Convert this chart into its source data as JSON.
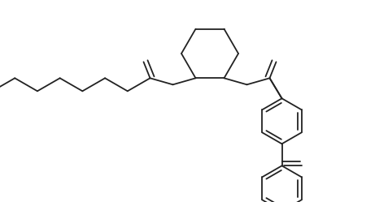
{
  "background_color": "#ffffff",
  "line_color": "#222222",
  "line_width": 1.3,
  "figsize": [
    4.61,
    2.49
  ],
  "dpi": 100,
  "xlim": [
    0,
    461
  ],
  "ylim": [
    0,
    249
  ]
}
